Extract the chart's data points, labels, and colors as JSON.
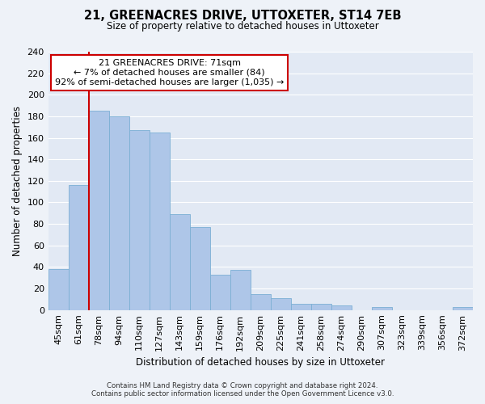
{
  "title": "21, GREENACRES DRIVE, UTTOXETER, ST14 7EB",
  "subtitle": "Size of property relative to detached houses in Uttoxeter",
  "xlabel": "Distribution of detached houses by size in Uttoxeter",
  "ylabel": "Number of detached properties",
  "bin_labels": [
    "45sqm",
    "61sqm",
    "78sqm",
    "94sqm",
    "110sqm",
    "127sqm",
    "143sqm",
    "159sqm",
    "176sqm",
    "192sqm",
    "209sqm",
    "225sqm",
    "241sqm",
    "258sqm",
    "274sqm",
    "290sqm",
    "307sqm",
    "323sqm",
    "339sqm",
    "356sqm",
    "372sqm"
  ],
  "bar_heights": [
    38,
    116,
    185,
    180,
    167,
    165,
    89,
    77,
    33,
    37,
    15,
    11,
    6,
    6,
    4,
    0,
    3,
    0,
    0,
    0,
    3
  ],
  "bar_color": "#aec6e8",
  "bar_edge_color": "#7bafd4",
  "annotation_text": "21 GREENACRES DRIVE: 71sqm\n← 7% of detached houses are smaller (84)\n92% of semi-detached houses are larger (1,035) →",
  "annotation_box_color": "#ffffff",
  "annotation_box_edge_color": "#cc0000",
  "ylim": [
    0,
    240
  ],
  "yticks": [
    0,
    20,
    40,
    60,
    80,
    100,
    120,
    140,
    160,
    180,
    200,
    220,
    240
  ],
  "footer_text": "Contains HM Land Registry data © Crown copyright and database right 2024.\nContains public sector information licensed under the Open Government Licence v3.0.",
  "bg_color": "#eef2f8",
  "plot_bg_color": "#e2e9f4",
  "grid_color": "#ffffff",
  "red_line_color": "#cc0000",
  "red_line_x": 1.5
}
